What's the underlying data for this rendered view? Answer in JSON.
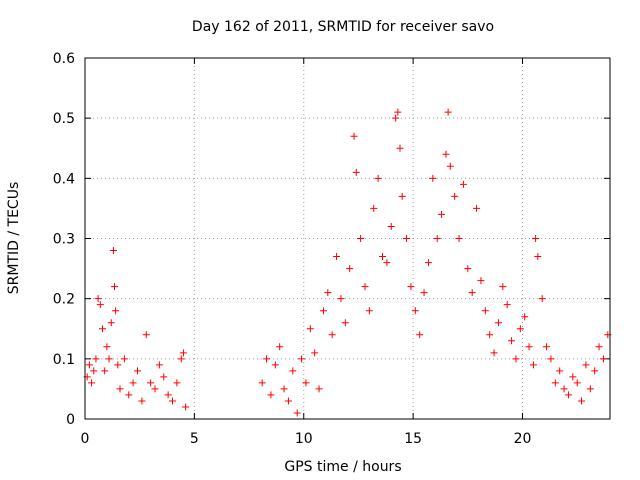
{
  "chart_data": {
    "type": "scatter",
    "title": "Day 162 of 2011, SRMTID for receiver savo",
    "xlabel": "GPS time / hours",
    "ylabel": "SRMTID / TECUs",
    "xlim": [
      0,
      24
    ],
    "ylim": [
      0,
      0.6
    ],
    "x_ticks": [
      0,
      5,
      10,
      15,
      20
    ],
    "y_ticks": [
      0,
      0.1,
      0.2,
      0.3,
      0.4,
      0.5,
      0.6
    ],
    "x_tick_labels": [
      "0",
      "5",
      "10",
      "15",
      "20"
    ],
    "y_tick_labels": [
      "0",
      "0.1",
      "0.2",
      "0.3",
      "0.4",
      "0.5",
      "0.6"
    ],
    "grid": true,
    "marker": "+",
    "series": [
      {
        "name": "SRMTID",
        "color": "#ff0000",
        "points": [
          [
            0.1,
            0.07
          ],
          [
            0.2,
            0.09
          ],
          [
            0.3,
            0.06
          ],
          [
            0.4,
            0.08
          ],
          [
            0.5,
            0.1
          ],
          [
            0.6,
            0.2
          ],
          [
            0.7,
            0.19
          ],
          [
            0.8,
            0.15
          ],
          [
            0.9,
            0.08
          ],
          [
            1.0,
            0.12
          ],
          [
            1.1,
            0.1
          ],
          [
            1.2,
            0.16
          ],
          [
            1.3,
            0.28
          ],
          [
            1.35,
            0.22
          ],
          [
            1.4,
            0.18
          ],
          [
            1.5,
            0.09
          ],
          [
            1.6,
            0.05
          ],
          [
            1.8,
            0.1
          ],
          [
            2.0,
            0.04
          ],
          [
            2.2,
            0.06
          ],
          [
            2.4,
            0.08
          ],
          [
            2.6,
            0.03
          ],
          [
            2.8,
            0.14
          ],
          [
            3.0,
            0.06
          ],
          [
            3.2,
            0.05
          ],
          [
            3.4,
            0.09
          ],
          [
            3.6,
            0.07
          ],
          [
            3.8,
            0.04
          ],
          [
            4.0,
            0.03
          ],
          [
            4.2,
            0.06
          ],
          [
            4.4,
            0.1
          ],
          [
            4.5,
            0.11
          ],
          [
            4.6,
            0.02
          ],
          [
            8.1,
            0.06
          ],
          [
            8.3,
            0.1
          ],
          [
            8.5,
            0.04
          ],
          [
            8.7,
            0.09
          ],
          [
            8.9,
            0.12
          ],
          [
            9.1,
            0.05
          ],
          [
            9.3,
            0.03
          ],
          [
            9.5,
            0.08
          ],
          [
            9.7,
            0.01
          ],
          [
            9.9,
            0.1
          ],
          [
            10.1,
            0.06
          ],
          [
            10.3,
            0.15
          ],
          [
            10.5,
            0.11
          ],
          [
            10.7,
            0.05
          ],
          [
            10.9,
            0.18
          ],
          [
            11.1,
            0.21
          ],
          [
            11.3,
            0.14
          ],
          [
            11.5,
            0.27
          ],
          [
            11.7,
            0.2
          ],
          [
            11.9,
            0.16
          ],
          [
            12.1,
            0.25
          ],
          [
            12.3,
            0.47
          ],
          [
            12.4,
            0.41
          ],
          [
            12.6,
            0.3
          ],
          [
            12.8,
            0.22
          ],
          [
            13.0,
            0.18
          ],
          [
            13.2,
            0.35
          ],
          [
            13.4,
            0.4
          ],
          [
            13.6,
            0.27
          ],
          [
            13.8,
            0.26
          ],
          [
            14.0,
            0.32
          ],
          [
            14.2,
            0.5
          ],
          [
            14.3,
            0.51
          ],
          [
            14.4,
            0.45
          ],
          [
            14.5,
            0.37
          ],
          [
            14.7,
            0.3
          ],
          [
            14.9,
            0.22
          ],
          [
            15.1,
            0.18
          ],
          [
            15.3,
            0.14
          ],
          [
            15.5,
            0.21
          ],
          [
            15.7,
            0.26
          ],
          [
            15.9,
            0.4
          ],
          [
            16.1,
            0.3
          ],
          [
            16.3,
            0.34
          ],
          [
            16.5,
            0.44
          ],
          [
            16.6,
            0.51
          ],
          [
            16.7,
            0.42
          ],
          [
            16.9,
            0.37
          ],
          [
            17.1,
            0.3
          ],
          [
            17.3,
            0.39
          ],
          [
            17.5,
            0.25
          ],
          [
            17.7,
            0.21
          ],
          [
            17.9,
            0.35
          ],
          [
            18.1,
            0.23
          ],
          [
            18.3,
            0.18
          ],
          [
            18.5,
            0.14
          ],
          [
            18.7,
            0.11
          ],
          [
            18.9,
            0.16
          ],
          [
            19.1,
            0.22
          ],
          [
            19.3,
            0.19
          ],
          [
            19.5,
            0.13
          ],
          [
            19.7,
            0.1
          ],
          [
            19.9,
            0.15
          ],
          [
            20.1,
            0.17
          ],
          [
            20.3,
            0.12
          ],
          [
            20.5,
            0.09
          ],
          [
            20.6,
            0.3
          ],
          [
            20.7,
            0.27
          ],
          [
            20.9,
            0.2
          ],
          [
            21.1,
            0.12
          ],
          [
            21.3,
            0.1
          ],
          [
            21.5,
            0.06
          ],
          [
            21.7,
            0.08
          ],
          [
            21.9,
            0.05
          ],
          [
            22.1,
            0.04
          ],
          [
            22.3,
            0.07
          ],
          [
            22.5,
            0.06
          ],
          [
            22.7,
            0.03
          ],
          [
            22.9,
            0.09
          ],
          [
            23.1,
            0.05
          ],
          [
            23.3,
            0.08
          ],
          [
            23.5,
            0.12
          ],
          [
            23.7,
            0.1
          ],
          [
            23.9,
            0.14
          ]
        ]
      }
    ]
  }
}
